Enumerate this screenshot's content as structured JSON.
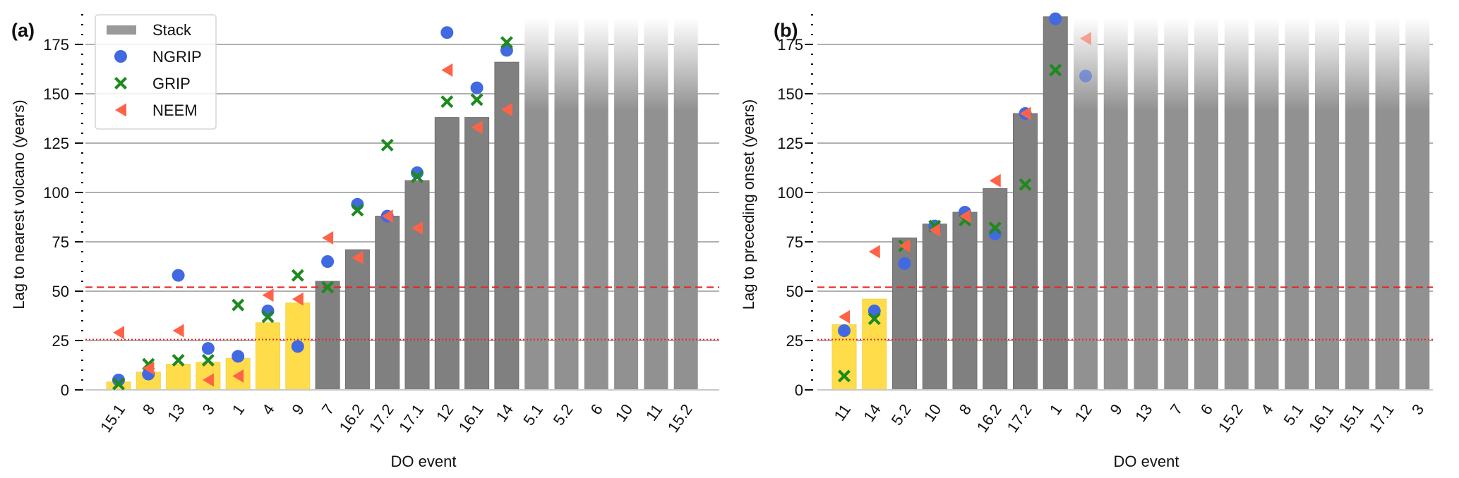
{
  "colors": {
    "stack": "#808080",
    "stack_legend": "#999999",
    "highlight": "#FFDD4A",
    "faded": "#919191",
    "ngrip": "#4169E1",
    "grip": "#1E8A1E",
    "neem": "#FF6347",
    "ref_line": "#E8231F",
    "grid": "#b0b0b0"
  },
  "legend": {
    "placement": "top-left of panel (a)",
    "entries": [
      {
        "key": "stack",
        "label": "Stack",
        "marker": "bar"
      },
      {
        "key": "ngrip",
        "label": "NGRIP",
        "marker": "circle"
      },
      {
        "key": "grip",
        "label": "GRIP",
        "marker": "x"
      },
      {
        "key": "neem",
        "label": "NEEM",
        "marker": "triangle-left"
      }
    ]
  },
  "chart_data": [
    {
      "panel_label": "(a)",
      "type": "bar",
      "xlabel": "DO event",
      "ylabel": "Lag to nearest volcano (years)",
      "ylim": [
        0,
        190
      ],
      "yticks": [
        0,
        25,
        50,
        75,
        100,
        125,
        150,
        175
      ],
      "grid": "horizontal",
      "categories": [
        "15.1",
        "8",
        "13",
        "3",
        "1",
        "4",
        "9",
        "7",
        "16.2",
        "17.2",
        "17.1",
        "12",
        "16.1",
        "14",
        "5.1",
        "5.2",
        "6",
        "10",
        "11",
        "15.2"
      ],
      "bar_status": [
        "highlight",
        "highlight",
        "highlight",
        "highlight",
        "highlight",
        "highlight",
        "highlight",
        "normal",
        "normal",
        "normal",
        "normal",
        "normal",
        "normal",
        "normal",
        "faded",
        "faded",
        "faded",
        "faded",
        "faded",
        "faded"
      ],
      "series": [
        {
          "name": "Stack",
          "key": "stack",
          "values": [
            4,
            9,
            13,
            14,
            16,
            34,
            44,
            55,
            71,
            88,
            106,
            138,
            138,
            166,
            null,
            null,
            null,
            null,
            null,
            null
          ]
        },
        {
          "name": "NGRIP",
          "key": "ngrip",
          "values": [
            5,
            8,
            58,
            21,
            17,
            40,
            22,
            65,
            94,
            88,
            110,
            181,
            153,
            172,
            null,
            null,
            null,
            null,
            null,
            null
          ]
        },
        {
          "name": "GRIP",
          "key": "grip",
          "values": [
            3,
            13,
            15,
            15,
            43,
            37,
            58,
            52,
            91,
            124,
            108,
            146,
            147,
            176,
            null,
            null,
            null,
            null,
            null,
            null
          ]
        },
        {
          "name": "NEEM",
          "key": "neem",
          "values": [
            29,
            11,
            30,
            5,
            7,
            48,
            46,
            77,
            67,
            88,
            82,
            162,
            133,
            142,
            null,
            null,
            null,
            null,
            null,
            null
          ]
        }
      ],
      "faded_marker_categories": [],
      "reference_lines": [
        {
          "value": 52,
          "style": "dashed"
        },
        {
          "value": 25.5,
          "style": "dotted"
        }
      ]
    },
    {
      "panel_label": "(b)",
      "type": "bar",
      "xlabel": "DO event",
      "ylabel": "Lag to preceding onset (years)",
      "ylim": [
        0,
        190
      ],
      "yticks": [
        0,
        25,
        50,
        75,
        100,
        125,
        150,
        175
      ],
      "grid": "horizontal",
      "categories": [
        "11",
        "14",
        "5.2",
        "10",
        "8",
        "16.2",
        "17.2",
        "1",
        "12",
        "9",
        "13",
        "7",
        "6",
        "15.2",
        "4",
        "5.1",
        "16.1",
        "15.1",
        "17.1",
        "3"
      ],
      "bar_status": [
        "highlight",
        "highlight",
        "normal",
        "normal",
        "normal",
        "normal",
        "normal",
        "normal",
        "faded",
        "faded",
        "faded",
        "faded",
        "faded",
        "faded",
        "faded",
        "faded",
        "faded",
        "faded",
        "faded",
        "faded"
      ],
      "series": [
        {
          "name": "Stack",
          "key": "stack",
          "values": [
            33,
            46,
            77,
            84,
            90,
            102,
            140,
            189,
            null,
            null,
            null,
            null,
            null,
            null,
            null,
            null,
            null,
            null,
            null,
            null
          ]
        },
        {
          "name": "NGRIP",
          "key": "ngrip",
          "values": [
            30,
            40,
            64,
            83,
            90,
            79,
            140,
            188,
            159,
            null,
            null,
            null,
            null,
            null,
            null,
            null,
            null,
            null,
            null,
            null
          ]
        },
        {
          "name": "GRIP",
          "key": "grip",
          "values": [
            7,
            36,
            73,
            83,
            86,
            82,
            104,
            162,
            null,
            null,
            null,
            null,
            null,
            null,
            null,
            null,
            null,
            null,
            null,
            null
          ]
        },
        {
          "name": "NEEM",
          "key": "neem",
          "values": [
            37,
            70,
            73,
            81,
            88,
            106,
            140,
            null,
            178,
            null,
            null,
            null,
            null,
            null,
            null,
            null,
            null,
            null,
            null,
            null
          ]
        }
      ],
      "faded_marker_categories": [
        "12"
      ],
      "reference_lines": [
        {
          "value": 52,
          "style": "dashed"
        },
        {
          "value": 25.5,
          "style": "dotted"
        }
      ]
    }
  ]
}
